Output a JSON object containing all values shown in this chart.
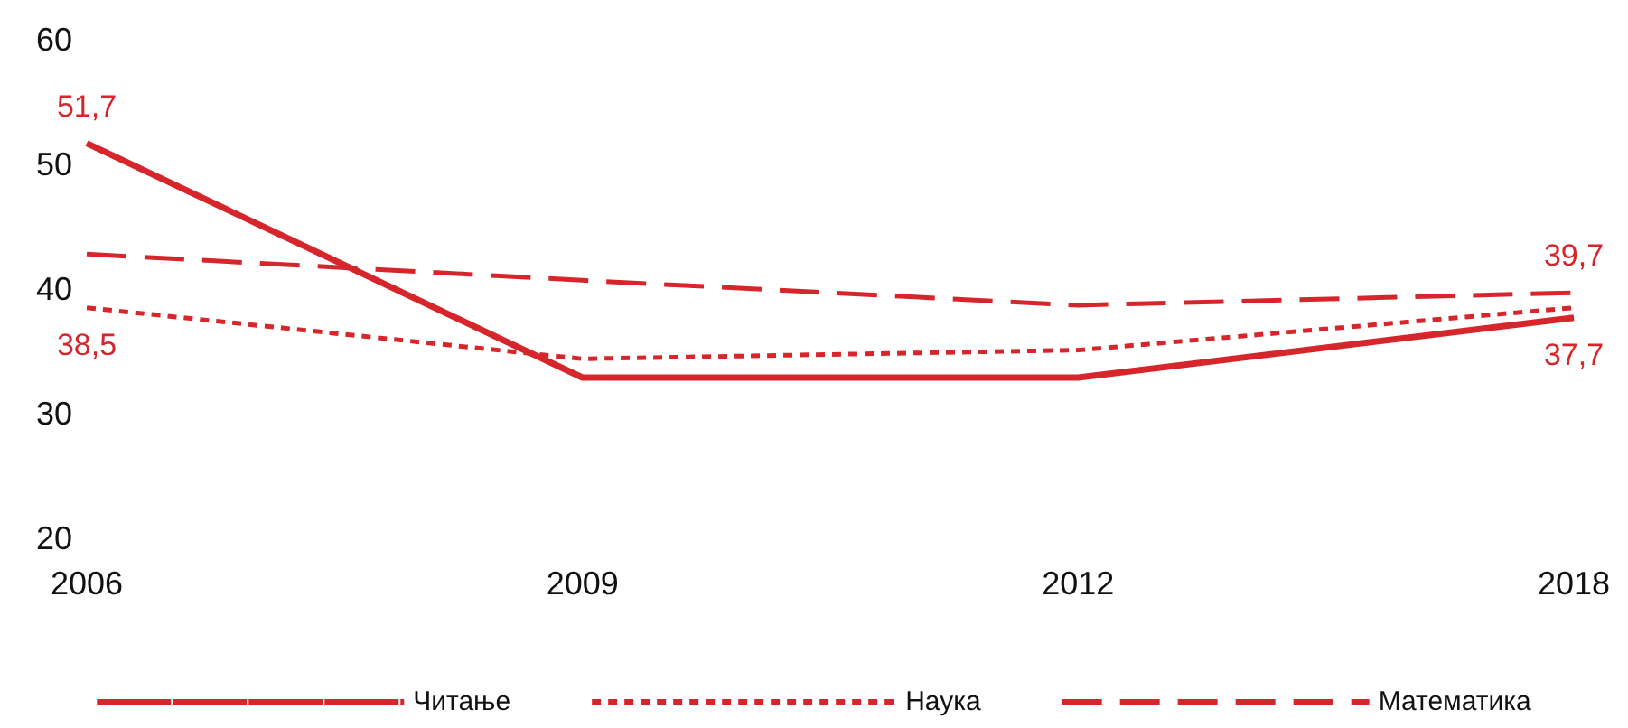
{
  "chart_data": {
    "type": "line",
    "categories": [
      "2006",
      "2009",
      "2012",
      "2018"
    ],
    "series": [
      {
        "name": "Читање",
        "color": "#d7262b",
        "line_style": "solid",
        "values": [
          51.7,
          32.9,
          32.9,
          37.7
        ],
        "value_labels": [
          "51,7",
          null,
          null,
          "37,7"
        ]
      },
      {
        "name": "Наука",
        "color": "#d7262b",
        "line_style": "dotted",
        "values": [
          38.5,
          34.4,
          35.1,
          38.5
        ],
        "value_labels": [
          "38,5",
          null,
          null,
          null
        ]
      },
      {
        "name": "Математика",
        "color": "#d7262b",
        "line_style": "dashed",
        "values": [
          42.8,
          40.7,
          38.7,
          39.7
        ],
        "value_labels": [
          null,
          null,
          null,
          "39,7"
        ]
      }
    ],
    "ylim": [
      20,
      60
    ],
    "yticks": [
      20,
      30,
      40,
      50,
      60
    ],
    "grid": false,
    "legend": "bottom",
    "marker": "none"
  }
}
